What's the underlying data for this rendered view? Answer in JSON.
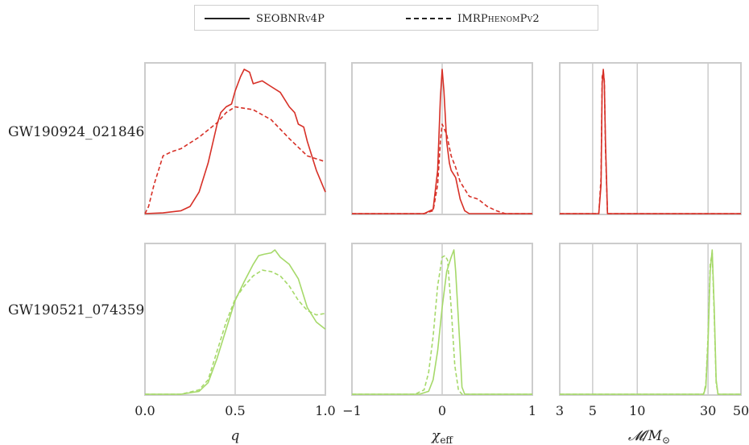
{
  "legend": {
    "solid_label": "SEOBNRv4P",
    "dashed_label": "IMRPhenomPv2"
  },
  "rows": [
    {
      "label": "GW190924_021846",
      "color": "#d73027"
    },
    {
      "label": "GW190521_074359",
      "color": "#a6d96a"
    }
  ],
  "axes": {
    "q": {
      "label": "q",
      "ticks": [
        "0.0",
        "0.5",
        "1.0"
      ],
      "range": [
        0,
        1
      ]
    },
    "chi": {
      "label": "χ",
      "subscript": "eff",
      "ticks": [
        "−1",
        "0",
        "1"
      ],
      "range": [
        -1,
        1
      ]
    },
    "mc": {
      "label": "𝓜/M",
      "subscript": "⊙",
      "ticks": [
        "3",
        "5",
        "10",
        "30",
        "50"
      ],
      "range": [
        3,
        50
      ],
      "scale": "log"
    }
  },
  "chart_data": {
    "type": "line",
    "description_free": true,
    "panels": [
      {
        "row": 0,
        "axis": "q",
        "series": [
          {
            "name": "SEOBNRv4P",
            "style": "solid",
            "x": [
              0.0,
              0.1,
              0.2,
              0.25,
              0.3,
              0.35,
              0.4,
              0.42,
              0.45,
              0.48,
              0.5,
              0.53,
              0.55,
              0.58,
              0.6,
              0.65,
              0.7,
              0.75,
              0.8,
              0.83,
              0.85,
              0.88,
              0.9,
              0.95,
              1.0
            ],
            "y": [
              0.0,
              0.005,
              0.02,
              0.05,
              0.15,
              0.35,
              0.62,
              0.7,
              0.74,
              0.76,
              0.85,
              0.95,
              1.0,
              0.98,
              0.9,
              0.92,
              0.88,
              0.84,
              0.74,
              0.7,
              0.62,
              0.6,
              0.5,
              0.3,
              0.15
            ]
          },
          {
            "name": "IMRPhenomPv2",
            "style": "dashed",
            "x": [
              0.0,
              0.02,
              0.05,
              0.1,
              0.15,
              0.2,
              0.3,
              0.4,
              0.45,
              0.5,
              0.55,
              0.6,
              0.7,
              0.8,
              0.85,
              0.9,
              0.95,
              1.0
            ],
            "y": [
              0.0,
              0.05,
              0.2,
              0.4,
              0.43,
              0.45,
              0.53,
              0.63,
              0.7,
              0.74,
              0.73,
              0.72,
              0.65,
              0.52,
              0.46,
              0.4,
              0.38,
              0.36
            ]
          }
        ]
      },
      {
        "row": 0,
        "axis": "chi",
        "series": [
          {
            "name": "SEOBNRv4P",
            "style": "solid",
            "x": [
              -1,
              -0.2,
              -0.1,
              -0.05,
              -0.02,
              0.0,
              0.02,
              0.05,
              0.08,
              0.1,
              0.15,
              0.2,
              0.25,
              0.3,
              1
            ],
            "y": [
              0,
              0,
              0.03,
              0.3,
              0.8,
              1.0,
              0.85,
              0.5,
              0.35,
              0.3,
              0.25,
              0.1,
              0.02,
              0,
              0
            ]
          },
          {
            "name": "IMRPhenomPv2",
            "style": "dashed",
            "x": [
              -1,
              -0.2,
              -0.1,
              -0.05,
              -0.02,
              0.0,
              0.05,
              0.1,
              0.15,
              0.2,
              0.3,
              0.4,
              0.5,
              0.6,
              0.7,
              1
            ],
            "y": [
              0,
              0,
              0.02,
              0.2,
              0.5,
              0.62,
              0.55,
              0.4,
              0.32,
              0.22,
              0.12,
              0.1,
              0.05,
              0.02,
              0,
              0
            ]
          }
        ]
      },
      {
        "row": 0,
        "axis": "mc",
        "series": [
          {
            "name": "SEOBNRv4P",
            "style": "solid",
            "x": [
              3,
              5.5,
              5.7,
              5.8,
              5.9,
              6.0,
              6.1,
              6.3,
              50
            ],
            "y": [
              0,
              0,
              0.2,
              0.9,
              1.0,
              0.9,
              0.5,
              0,
              0
            ]
          },
          {
            "name": "IMRPhenomPv2",
            "style": "dashed",
            "x": [
              3,
              5.5,
              5.7,
              5.8,
              5.9,
              6.0,
              6.1,
              6.3,
              50
            ],
            "y": [
              0,
              0,
              0.25,
              0.95,
              0.98,
              0.92,
              0.45,
              0,
              0
            ]
          }
        ]
      },
      {
        "row": 1,
        "axis": "q",
        "series": [
          {
            "name": "SEOBNRv4P",
            "style": "solid",
            "x": [
              0.0,
              0.2,
              0.3,
              0.35,
              0.4,
              0.45,
              0.5,
              0.55,
              0.6,
              0.63,
              0.66,
              0.7,
              0.72,
              0.75,
              0.8,
              0.85,
              0.9,
              0.95,
              1.0
            ],
            "y": [
              0.0,
              0.0,
              0.02,
              0.08,
              0.25,
              0.45,
              0.65,
              0.78,
              0.9,
              0.96,
              0.97,
              0.98,
              1.0,
              0.95,
              0.9,
              0.8,
              0.6,
              0.5,
              0.45
            ]
          },
          {
            "name": "IMRPhenomPv2",
            "style": "dashed",
            "x": [
              0.0,
              0.2,
              0.3,
              0.35,
              0.4,
              0.45,
              0.5,
              0.55,
              0.6,
              0.65,
              0.7,
              0.75,
              0.8,
              0.85,
              0.9,
              0.95,
              1.0
            ],
            "y": [
              0.0,
              0.0,
              0.03,
              0.1,
              0.3,
              0.5,
              0.66,
              0.75,
              0.82,
              0.86,
              0.85,
              0.82,
              0.75,
              0.65,
              0.58,
              0.55,
              0.56
            ]
          }
        ]
      },
      {
        "row": 1,
        "axis": "chi",
        "series": [
          {
            "name": "SEOBNRv4P",
            "style": "solid",
            "x": [
              -1,
              -0.25,
              -0.15,
              -0.1,
              -0.05,
              0.0,
              0.05,
              0.1,
              0.13,
              0.15,
              0.2,
              0.22,
              0.25,
              1
            ],
            "y": [
              0,
              0,
              0.02,
              0.1,
              0.3,
              0.6,
              0.85,
              0.95,
              1.0,
              0.85,
              0.3,
              0.05,
              0,
              0
            ]
          },
          {
            "name": "IMRPhenomPv2",
            "style": "dashed",
            "x": [
              -1,
              -0.3,
              -0.2,
              -0.15,
              -0.1,
              -0.05,
              0.0,
              0.03,
              0.06,
              0.1,
              0.14,
              0.18,
              0.22,
              1
            ],
            "y": [
              0,
              0,
              0.03,
              0.15,
              0.4,
              0.75,
              0.95,
              0.96,
              0.93,
              0.6,
              0.2,
              0.03,
              0,
              0
            ]
          }
        ]
      },
      {
        "row": 1,
        "axis": "mc",
        "series": [
          {
            "name": "SEOBNRv4P",
            "style": "solid",
            "x": [
              3,
              28,
              29,
              30,
              31,
              32,
              33,
              34,
              35,
              50
            ],
            "y": [
              0,
              0,
              0.05,
              0.35,
              0.85,
              1.0,
              0.6,
              0.1,
              0,
              0
            ]
          },
          {
            "name": "IMRPhenomPv2",
            "style": "dashed",
            "x": [
              3,
              28,
              29,
              30,
              31,
              32,
              33,
              34,
              35,
              50
            ],
            "y": [
              0,
              0,
              0.07,
              0.4,
              0.9,
              0.98,
              0.55,
              0.08,
              0,
              0
            ]
          }
        ]
      }
    ]
  }
}
